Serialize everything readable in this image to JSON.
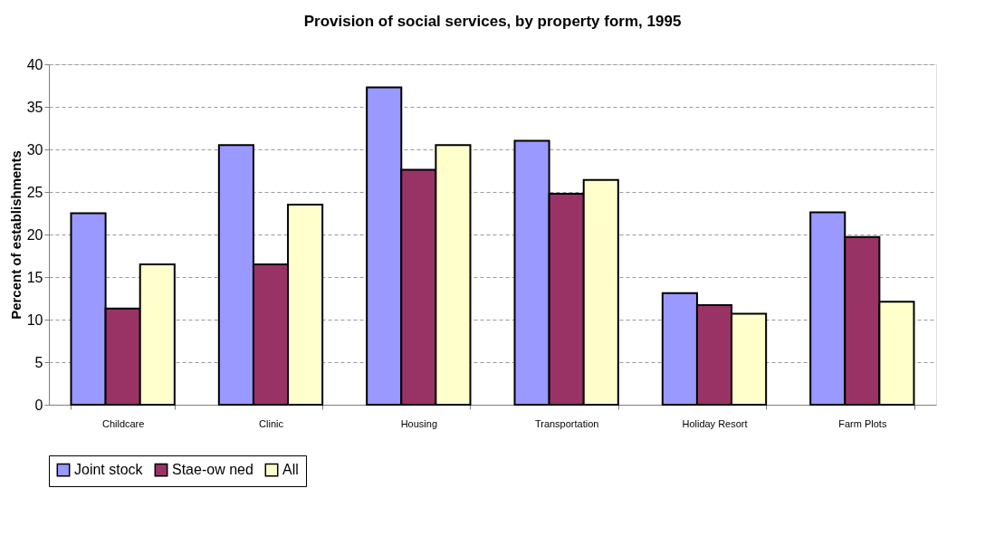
{
  "chart_data": {
    "type": "bar",
    "title": "Provision of social services, by property form, 1995",
    "ylabel": "Percent of establishments",
    "categories": [
      "Childcare",
      "Clinic",
      "Housing",
      "Transportation",
      "Holiday Resort",
      "Farm Plots"
    ],
    "series": [
      {
        "name": "Joint stock",
        "color": "#9999ff",
        "values": [
          22.5,
          30.5,
          37.3,
          31.0,
          13.1,
          22.6
        ]
      },
      {
        "name": "Stae-ow ned",
        "color": "#993366",
        "values": [
          11.3,
          16.5,
          27.6,
          24.8,
          11.7,
          19.7
        ]
      },
      {
        "name": "All",
        "color": "#ffffcc",
        "values": [
          16.5,
          23.5,
          30.5,
          26.4,
          10.7,
          12.1
        ]
      }
    ],
    "ylim": [
      0,
      40
    ],
    "yticks": [
      0,
      5,
      10,
      15,
      20,
      25,
      30,
      35,
      40
    ],
    "grid": "y",
    "legend": "bottom"
  }
}
